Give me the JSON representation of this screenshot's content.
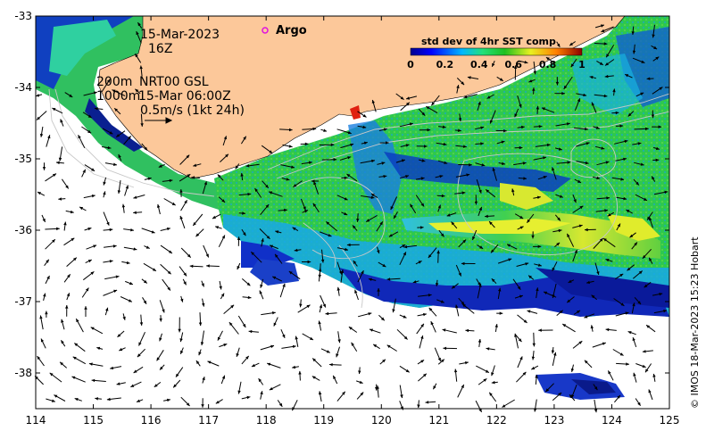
{
  "map": {
    "date": "15-Mar-2023",
    "hour": "16Z",
    "depth_200m": "200m",
    "depth_1000m": "1000m",
    "current_source": "NRT00 GSL",
    "current_time": "15-Mar 06:00Z",
    "scale_text": "0.5m/s (1kt 24h)",
    "legend_argo": "Argo",
    "credit": "© IMOS 18-Mar-2023 15:23 Hobart",
    "colors": {
      "land": "#fcc89a",
      "ocean_blank": "#ffffff",
      "argo_marker": "#e010e0"
    }
  },
  "colorbar": {
    "title": "std dev of 4hr SST comp",
    "ticks": [
      "0",
      "0.2",
      "0.4",
      "0.6",
      "0.8",
      "1"
    ],
    "range": [
      0,
      1
    ]
  },
  "chart_data": {
    "type": "heatmap",
    "xlim": [
      114,
      125
    ],
    "ylim": [
      -38.5,
      -33
    ],
    "x_ticks": [
      "114",
      "115",
      "116",
      "117",
      "118",
      "119",
      "120",
      "121",
      "122",
      "123",
      "124",
      "125"
    ],
    "y_ticks": [
      "-33",
      "-34",
      "-35",
      "-36",
      "-37",
      "-38"
    ]
  }
}
